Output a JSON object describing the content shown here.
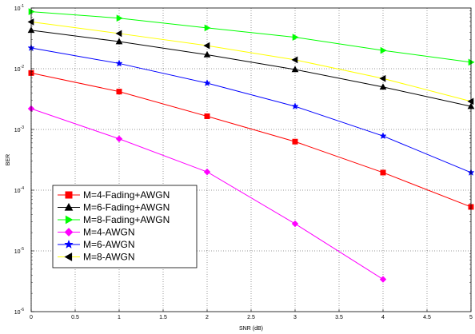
{
  "chart_data": {
    "type": "line",
    "title": "",
    "xlabel": "SNR (dB)",
    "ylabel": "BER",
    "xlim": [
      0,
      5
    ],
    "ylim": [
      1e-06,
      0.1
    ],
    "yscale": "log",
    "grid": true,
    "legend_position": "lower-left",
    "x_ticks": [
      "0",
      "0.5",
      "1",
      "1.5",
      "2",
      "2.5",
      "3",
      "3.5",
      "4",
      "4.5",
      "5"
    ],
    "y_ticks": [
      {
        "base": "10",
        "exp": "-6"
      },
      {
        "base": "10",
        "exp": "-5"
      },
      {
        "base": "10",
        "exp": "-4"
      },
      {
        "base": "10",
        "exp": "-3"
      },
      {
        "base": "10",
        "exp": "-2"
      },
      {
        "base": "10",
        "exp": "-1"
      }
    ],
    "series": [
      {
        "name": "M=4-Fading+AWGN",
        "color": "#ff0000",
        "marker": "square",
        "x": [
          0,
          1,
          2,
          3,
          4,
          5
        ],
        "y": [
          0.0085,
          0.0042,
          0.00165,
          0.00063,
          0.000195,
          5.3e-05
        ]
      },
      {
        "name": "M=6-Fading+AWGN",
        "color": "#000000",
        "marker": "triangle-up",
        "x": [
          0,
          1,
          2,
          3,
          4,
          5
        ],
        "y": [
          0.043,
          0.028,
          0.017,
          0.0097,
          0.005,
          0.0024
        ]
      },
      {
        "name": "M=8-Fading+AWGN",
        "color": "#00ff00",
        "marker": "triangle-right",
        "x": [
          0,
          1,
          2,
          3,
          4,
          5
        ],
        "y": [
          0.087,
          0.068,
          0.047,
          0.033,
          0.02,
          0.0128
        ]
      },
      {
        "name": "M=4-AWGN",
        "color": "#ff00ff",
        "marker": "diamond",
        "x": [
          0,
          1,
          2,
          3,
          4
        ],
        "y": [
          0.0022,
          0.0007,
          0.0002,
          2.8e-05,
          3.4e-06
        ]
      },
      {
        "name": "M=6-AWGN",
        "color": "#0000ff",
        "marker": "star",
        "x": [
          0,
          1,
          2,
          3,
          4,
          5
        ],
        "y": [
          0.022,
          0.0122,
          0.0058,
          0.0024,
          0.00078,
          0.000195
        ]
      },
      {
        "name": "M=8-AWGN",
        "color": "#ffff00",
        "marker": "triangle-left",
        "x": [
          0,
          1,
          2,
          3,
          4,
          5
        ],
        "y": [
          0.059,
          0.038,
          0.024,
          0.014,
          0.0069,
          0.0029
        ]
      }
    ]
  }
}
